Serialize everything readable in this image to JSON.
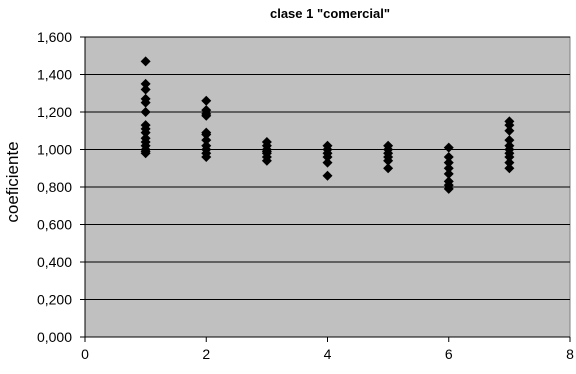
{
  "chart_data": {
    "type": "scatter",
    "title": "clase 1 \"comercial\"",
    "xlabel": "",
    "ylabel": "coeficiente",
    "xlim": [
      0,
      8
    ],
    "ylim": [
      0,
      1.6
    ],
    "x_ticks": [
      "0",
      "2",
      "4",
      "6",
      "8"
    ],
    "y_ticks": [
      "0,000",
      "0,200",
      "0,400",
      "0,600",
      "0,800",
      "1,000",
      "1,200",
      "1,400",
      "1,600"
    ],
    "grid": "horizontal",
    "legend": "none",
    "series": [
      {
        "marker": "diamond",
        "color": "#000000",
        "points": [
          [
            1,
            1.47
          ],
          [
            1,
            1.35
          ],
          [
            1,
            1.32
          ],
          [
            1,
            1.27
          ],
          [
            1,
            1.25
          ],
          [
            1,
            1.2
          ],
          [
            1,
            1.13
          ],
          [
            1,
            1.11
          ],
          [
            1,
            1.09
          ],
          [
            1,
            1.06
          ],
          [
            1,
            1.04
          ],
          [
            1,
            1.02
          ],
          [
            1,
            1.0
          ],
          [
            1,
            0.99
          ],
          [
            1,
            0.98
          ],
          [
            2,
            1.26
          ],
          [
            2,
            1.21
          ],
          [
            2,
            1.19
          ],
          [
            2,
            1.18
          ],
          [
            2,
            1.09
          ],
          [
            2,
            1.08
          ],
          [
            2,
            1.05
          ],
          [
            2,
            1.02
          ],
          [
            2,
            1.0
          ],
          [
            2,
            0.98
          ],
          [
            2,
            0.96
          ],
          [
            3,
            1.04
          ],
          [
            3,
            1.02
          ],
          [
            3,
            1.0
          ],
          [
            3,
            0.99
          ],
          [
            3,
            0.98
          ],
          [
            3,
            0.96
          ],
          [
            3,
            0.94
          ],
          [
            4,
            1.02
          ],
          [
            4,
            1.0
          ],
          [
            4,
            0.98
          ],
          [
            4,
            0.96
          ],
          [
            4,
            0.93
          ],
          [
            4,
            0.86
          ],
          [
            5,
            1.02
          ],
          [
            5,
            1.0
          ],
          [
            5,
            0.98
          ],
          [
            5,
            0.96
          ],
          [
            5,
            0.94
          ],
          [
            5,
            0.9
          ],
          [
            6,
            1.01
          ],
          [
            6,
            0.96
          ],
          [
            6,
            0.93
          ],
          [
            6,
            0.9
          ],
          [
            6,
            0.87
          ],
          [
            6,
            0.83
          ],
          [
            6,
            0.81
          ],
          [
            6,
            0.79
          ],
          [
            7,
            1.15
          ],
          [
            7,
            1.13
          ],
          [
            7,
            1.1
          ],
          [
            7,
            1.05
          ],
          [
            7,
            1.02
          ],
          [
            7,
            1.0
          ],
          [
            7,
            0.98
          ],
          [
            7,
            0.96
          ],
          [
            7,
            0.93
          ],
          [
            7,
            0.9
          ]
        ]
      }
    ]
  }
}
